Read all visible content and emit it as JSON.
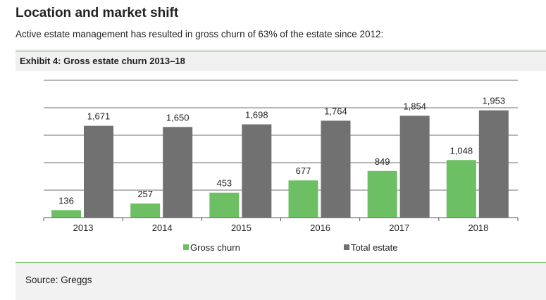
{
  "page": {
    "title": "Location and market shift",
    "intro": "Active estate management has resulted in gross churn of 63% of the estate since 2012:",
    "exhibit_title": "Exhibit 4: Gross estate churn 2013–18",
    "source": "Source: Greggs"
  },
  "chart_data": {
    "type": "bar",
    "title": "Exhibit 4: Gross estate churn 2013–18",
    "categories": [
      "2013",
      "2014",
      "2015",
      "2016",
      "2017",
      "2018"
    ],
    "series": [
      {
        "name": "Gross churn",
        "color": "#6cc063",
        "values": [
          136,
          257,
          453,
          677,
          849,
          1048
        ],
        "labels": [
          "136",
          "257",
          "453",
          "677",
          "849",
          "1,048"
        ]
      },
      {
        "name": "Total estate",
        "color": "#717171",
        "values": [
          1671,
          1650,
          1698,
          1764,
          1854,
          1953
        ],
        "labels": [
          "1,671",
          "1,650",
          "1,698",
          "1,764",
          "1,854",
          "1,953"
        ]
      }
    ],
    "xlabel": "",
    "ylabel": "",
    "ylim": [
      0,
      2500
    ],
    "grid": true,
    "legend": "bottom"
  }
}
